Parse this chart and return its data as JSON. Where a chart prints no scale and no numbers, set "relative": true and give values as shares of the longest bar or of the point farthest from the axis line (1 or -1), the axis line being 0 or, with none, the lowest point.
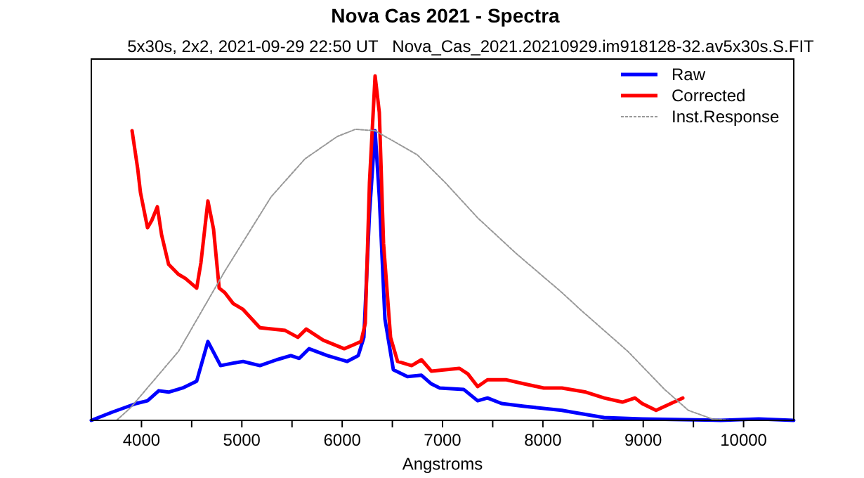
{
  "chart_data": {
    "type": "line",
    "title": "Nova Cas 2021 - Spectra",
    "subtitle": "5x30s, 2x2, 2021-09-29 22:50 UT   Nova_Cas_2021.20210929.im918128-32.av5x30s.S.FIT",
    "xlabel": "Angstroms",
    "relative": true,
    "xlim": [
      3500,
      10500
    ],
    "xticks": [
      4000,
      {
        "value": 4500,
        "label": null
      },
      5000,
      {
        "value": 5500,
        "label": null
      },
      6000,
      {
        "value": 6500,
        "label": null
      },
      7000,
      {
        "value": 7500,
        "label": null
      },
      8000,
      {
        "value": 8500,
        "label": null
      },
      9000,
      {
        "value": 9500,
        "label": null
      },
      10000
    ],
    "legend": "top right",
    "grid": false,
    "marker": "none",
    "series": [
      {
        "name": "Raw",
        "color": "#0000ff",
        "x": [
          3500,
          3710,
          3948,
          4060,
          4172,
          4270,
          4410,
          4550,
          4662,
          4788,
          4928,
          5012,
          5180,
          5348,
          5488,
          5572,
          5670,
          5852,
          6048,
          6160,
          6216,
          6272,
          6328,
          6370,
          6426,
          6510,
          6650,
          6790,
          6888,
          6972,
          7210,
          7350,
          7448,
          7588,
          7812,
          8190,
          8288,
          8610,
          8988,
          9772,
          10150,
          10500
        ],
        "values": [
          0,
          0.024,
          0.049,
          0.057,
          0.086,
          0.082,
          0.094,
          0.114,
          0.229,
          0.159,
          0.167,
          0.171,
          0.159,
          0.176,
          0.188,
          0.18,
          0.208,
          0.188,
          0.171,
          0.188,
          0.241,
          0.6,
          0.841,
          0.649,
          0.294,
          0.147,
          0.127,
          0.131,
          0.106,
          0.094,
          0.09,
          0.057,
          0.065,
          0.049,
          0.041,
          0.029,
          0.024,
          0.008,
          0.004,
          0,
          0.004,
          0
        ]
      },
      {
        "name": "Corrected",
        "color": "#ff0000",
        "x": [
          3906,
          3962,
          3990,
          4060,
          4102,
          4158,
          4200,
          4270,
          4368,
          4438,
          4550,
          4592,
          4662,
          4718,
          4774,
          4830,
          4914,
          5012,
          5180,
          5432,
          5558,
          5642,
          5810,
          6020,
          6118,
          6188,
          6230,
          6272,
          6328,
          6370,
          6412,
          6482,
          6552,
          6692,
          6790,
          6888,
          7168,
          7252,
          7350,
          7448,
          7630,
          7812,
          8008,
          8190,
          8428,
          8610,
          8792,
          8918,
          8988,
          9128,
          9394
        ],
        "values": [
          0.841,
          0.731,
          0.661,
          0.559,
          0.58,
          0.62,
          0.539,
          0.453,
          0.424,
          0.412,
          0.384,
          0.457,
          0.637,
          0.555,
          0.384,
          0.371,
          0.339,
          0.322,
          0.269,
          0.261,
          0.241,
          0.265,
          0.233,
          0.208,
          0.22,
          0.229,
          0.282,
          0.69,
          1,
          0.894,
          0.514,
          0.241,
          0.171,
          0.159,
          0.176,
          0.143,
          0.151,
          0.135,
          0.098,
          0.118,
          0.118,
          0.106,
          0.094,
          0.094,
          0.082,
          0.065,
          0.053,
          0.065,
          0.049,
          0.029,
          0.065
        ]
      },
      {
        "name": "Inst.Response",
        "color": "#999999",
        "line_style": "dashed",
        "x": [
          3752,
          3892,
          4368,
          4830,
          5292,
          5628,
          5950,
          6132,
          6328,
          6748,
          7028,
          7350,
          7728,
          8190,
          8372,
          8848,
          9212,
          9450,
          9688,
          9870
        ],
        "values": [
          0,
          0.037,
          0.2,
          0.433,
          0.649,
          0.759,
          0.824,
          0.845,
          0.841,
          0.771,
          0.69,
          0.588,
          0.486,
          0.371,
          0.322,
          0.2,
          0.09,
          0.029,
          0.004,
          0
        ]
      }
    ]
  }
}
